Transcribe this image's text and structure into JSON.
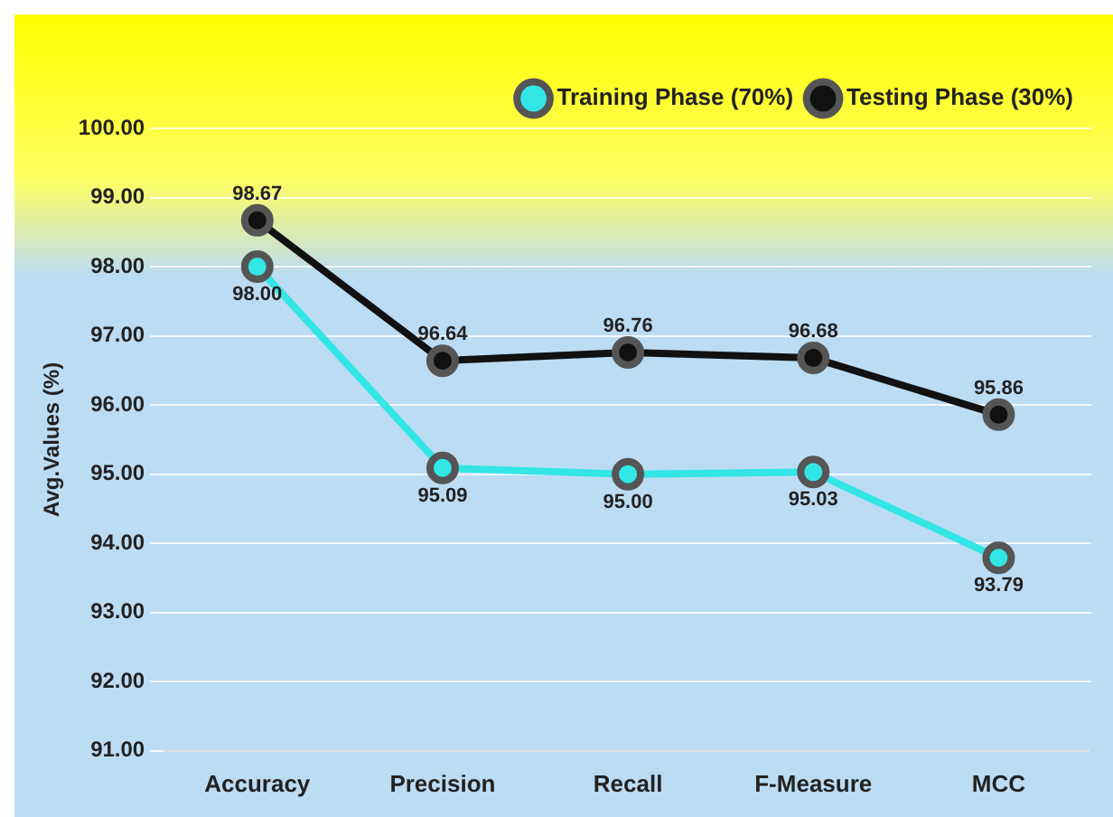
{
  "chart_data": {
    "type": "line",
    "ylabel": "Avg.Values (%)",
    "categories": [
      "Accuracy",
      "Precision",
      "Recall",
      "F-Measure",
      "MCC"
    ],
    "series": [
      {
        "name": "Training Phase (70%)",
        "color": "#33e6e6",
        "values": [
          98.0,
          95.09,
          95.0,
          95.03,
          93.79
        ],
        "value_labels": [
          "98.00",
          "95.09",
          "95.00",
          "95.03",
          "93.79"
        ]
      },
      {
        "name": "Testing Phase (30%)",
        "color": "#111111",
        "values": [
          98.67,
          96.64,
          96.76,
          96.68,
          95.86
        ],
        "value_labels": [
          "98.67",
          "96.64",
          "96.76",
          "96.68",
          "95.86"
        ]
      }
    ],
    "ylim": [
      91,
      100
    ],
    "yticks": [
      {
        "value": 91,
        "label": "91.00"
      },
      {
        "value": 92,
        "label": "92.00"
      },
      {
        "value": 93,
        "label": "93.00"
      },
      {
        "value": 94,
        "label": "94.00"
      },
      {
        "value": 95,
        "label": "95.00"
      },
      {
        "value": 96,
        "label": "96.00"
      },
      {
        "value": 97,
        "label": "97.00"
      },
      {
        "value": 98,
        "label": "98.00"
      },
      {
        "value": 99,
        "label": "99.00"
      },
      {
        "value": 100,
        "label": "100.00"
      }
    ],
    "grid": "y",
    "legend": "top right",
    "marker": "circle",
    "line_style": "solid"
  }
}
